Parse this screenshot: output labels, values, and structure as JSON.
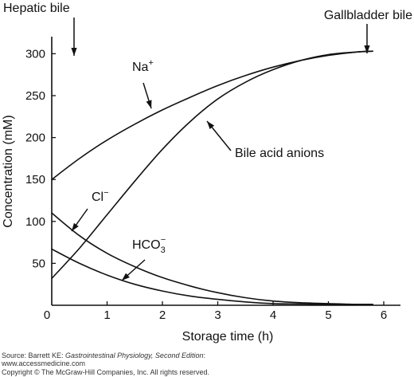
{
  "chart_data": {
    "type": "line",
    "xlabel": "Storage time (h)",
    "ylabel": "Concentration (mM)",
    "xlim": [
      0,
      6.3
    ],
    "ylim": [
      0,
      330
    ],
    "xticks": [
      0,
      1,
      2,
      3,
      4,
      5,
      6
    ],
    "yticks": [
      50,
      100,
      150,
      200,
      250,
      300
    ],
    "x_tick_labels": [
      "0",
      "1",
      "2",
      "3",
      "4",
      "5",
      "6"
    ],
    "y_tick_labels": [
      "50",
      "100",
      "150",
      "200",
      "250",
      "300"
    ],
    "origin_label": "0",
    "grid": false,
    "series": [
      {
        "id": "na",
        "x": [
          0,
          0.5,
          1,
          1.5,
          2,
          2.5,
          3,
          3.5,
          4,
          4.5,
          5,
          5.5,
          5.8
        ],
        "values": [
          150,
          175,
          197,
          216,
          233,
          248,
          262,
          274,
          284,
          292,
          298,
          302,
          303
        ]
      },
      {
        "id": "bile-acid",
        "x": [
          0,
          0.5,
          1,
          1.5,
          2,
          2.5,
          3,
          3.5,
          4,
          4.5,
          5,
          5.5,
          5.8
        ],
        "values": [
          32,
          68,
          108,
          148,
          186,
          219,
          246,
          266,
          281,
          292,
          299,
          302,
          303
        ]
      },
      {
        "id": "cl",
        "x": [
          0,
          0.5,
          1,
          1.5,
          2,
          2.5,
          3,
          3.5,
          4,
          4.5,
          5,
          5.5,
          5.8
        ],
        "values": [
          110,
          83,
          62,
          46,
          33,
          23,
          15,
          9,
          5,
          3,
          2,
          1,
          1
        ]
      },
      {
        "id": "hco3",
        "x": [
          0,
          0.5,
          1,
          1.5,
          2,
          2.5,
          3,
          3.5,
          4,
          4.5,
          5,
          5.5,
          5.8
        ],
        "values": [
          67,
          50,
          36,
          25,
          17,
          11,
          7,
          4,
          2,
          1.5,
          1,
          1,
          1
        ]
      }
    ],
    "annotations": [
      {
        "id": "hepatic",
        "text": "Hepatic bile",
        "x": 0.4,
        "y": 330
      },
      {
        "id": "gallbladder",
        "text": "Gallbladder bile",
        "x": 5.6,
        "y": 330
      },
      {
        "id": "na",
        "text": "Na",
        "sup": "+",
        "series": "na",
        "x": 1.8,
        "y": 227
      },
      {
        "id": "bile-acid",
        "text": "Bile acid anions",
        "series": "bile-acid",
        "x": 2.8,
        "y": 222
      },
      {
        "id": "cl",
        "text": "Cl",
        "sup": "−",
        "series": "cl",
        "x": 0.35,
        "y": 87
      },
      {
        "id": "hco3",
        "text": "HCO",
        "sub": "3",
        "sup": "−",
        "series": "hco3",
        "x": 1.3,
        "y": 28
      }
    ]
  },
  "source": {
    "prefix": "Source: Barrett KE: ",
    "title": "Gastrointestinal Physiology, Second Edition",
    "suffix": ":",
    "website": "www.accessmedicine.com",
    "copyright": "Copyright © The McGraw-Hill Companies, Inc. All rights reserved."
  }
}
